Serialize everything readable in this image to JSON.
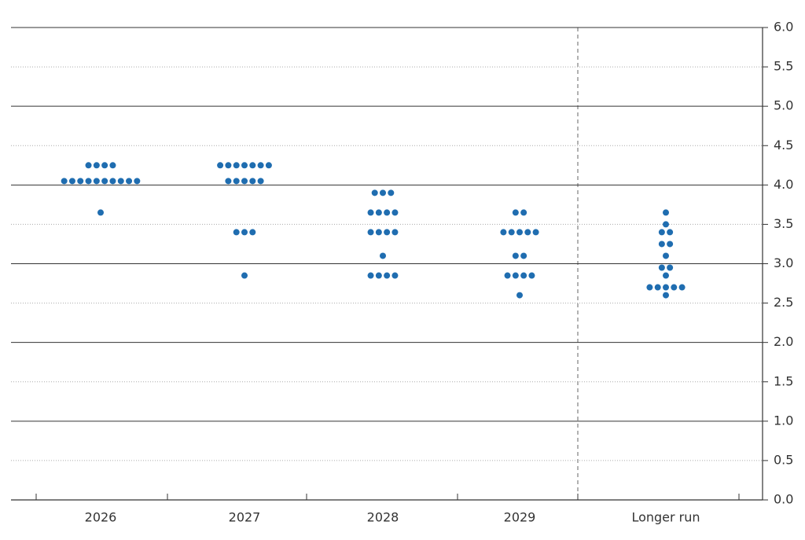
{
  "chart_data": {
    "type": "dot",
    "categories": [
      "2026",
      "2027",
      "2028",
      "2029",
      "Longer run"
    ],
    "values": [
      [
        4.25,
        4.25,
        4.25,
        4.25,
        4.05,
        4.05,
        4.05,
        4.05,
        4.05,
        4.05,
        4.05,
        4.05,
        4.05,
        4.05,
        3.65
      ],
      [
        4.25,
        4.25,
        4.25,
        4.25,
        4.25,
        4.25,
        4.25,
        4.05,
        4.05,
        4.05,
        4.05,
        4.05,
        3.4,
        3.4,
        3.4,
        2.85
      ],
      [
        3.9,
        3.9,
        3.9,
        3.65,
        3.65,
        3.65,
        3.65,
        3.4,
        3.4,
        3.4,
        3.4,
        3.1,
        2.85,
        2.85,
        2.85,
        2.85
      ],
      [
        3.65,
        3.65,
        3.4,
        3.4,
        3.4,
        3.4,
        3.4,
        3.1,
        3.1,
        2.85,
        2.85,
        2.85,
        2.85,
        2.6
      ],
      [
        3.65,
        3.5,
        3.4,
        3.4,
        3.25,
        3.25,
        3.1,
        2.95,
        2.95,
        2.85,
        2.7,
        2.7,
        2.7,
        2.7,
        2.7,
        2.6
      ]
    ],
    "color": "#1f6db0",
    "ylim": [
      0,
      6
    ],
    "yticks": [
      {
        "value": 0,
        "label": "0.0"
      },
      0.5,
      {
        "value": 1,
        "label": "1.0"
      },
      1.5,
      {
        "value": 2,
        "label": "2.0"
      },
      2.5,
      {
        "value": 3,
        "label": "3.0"
      },
      3.5,
      {
        "value": 4,
        "label": "4.0"
      },
      4.5,
      {
        "value": 5,
        "label": "5.0"
      },
      5.5,
      {
        "value": 6,
        "label": "6.0"
      }
    ],
    "grid": true
  }
}
